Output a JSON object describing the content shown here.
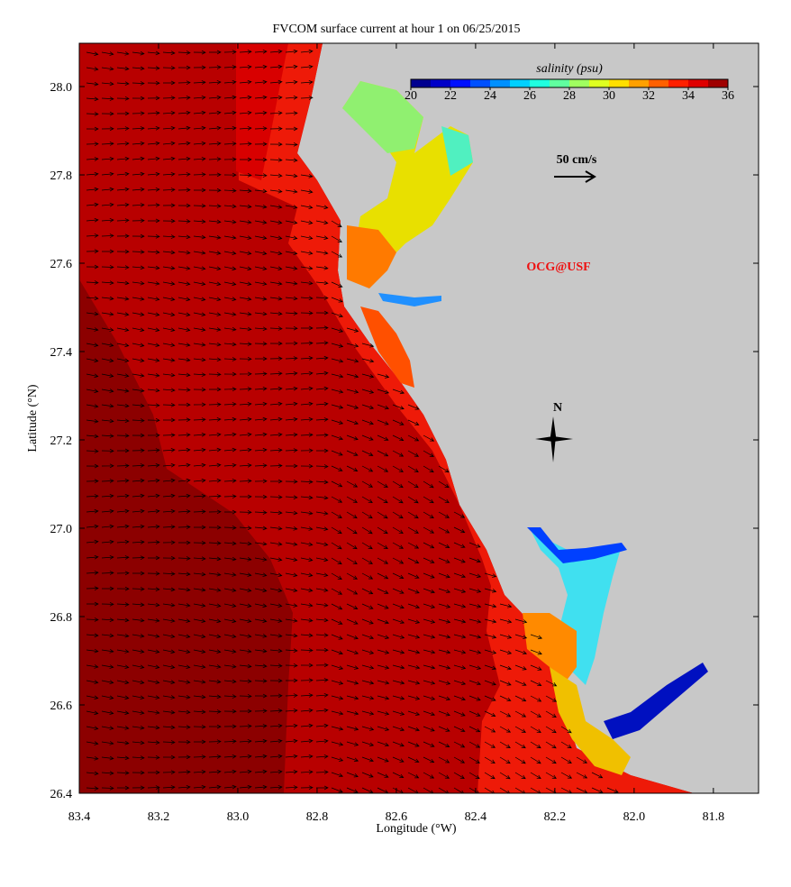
{
  "title": "FVCOM surface current at hour 1 on 06/25/2015",
  "x_label": "Longitude (°W)",
  "y_label": "Latitude (°N)",
  "xlim": [
    83.4,
    81.686
  ],
  "xticks": [
    83.4,
    83.2,
    {
      "value": 83,
      "label": "83.0"
    },
    82.8,
    82.6,
    82.4,
    82.2,
    {
      "value": 82,
      "label": "82.0"
    },
    81.8
  ],
  "ylim": [
    26.4,
    28.098
  ],
  "yticks": [
    26.4,
    26.6,
    26.8,
    {
      "value": 27,
      "label": "27.0"
    },
    27.2,
    27.4,
    27.6,
    27.8,
    {
      "value": 28,
      "label": "28.0"
    }
  ],
  "colorbar": {
    "title": "salinity (psu)",
    "range": [
      20,
      36
    ],
    "ticks": [
      20,
      22,
      24,
      26,
      28,
      30,
      32,
      34,
      36
    ],
    "colors": [
      "#00008f",
      "#0000c8",
      "#0010ff",
      "#0050ff",
      "#0090ff",
      "#00d0ff",
      "#20ffdf",
      "#60ff9f",
      "#a0ff60",
      "#dfff20",
      "#ffdf00",
      "#ffa000",
      "#ff6000",
      "#ff2000",
      "#df0000",
      "#9f0000"
    ]
  },
  "scale_arrow_label": "50 cm/s",
  "credit": "OCG@USF",
  "compass_label": "N"
}
